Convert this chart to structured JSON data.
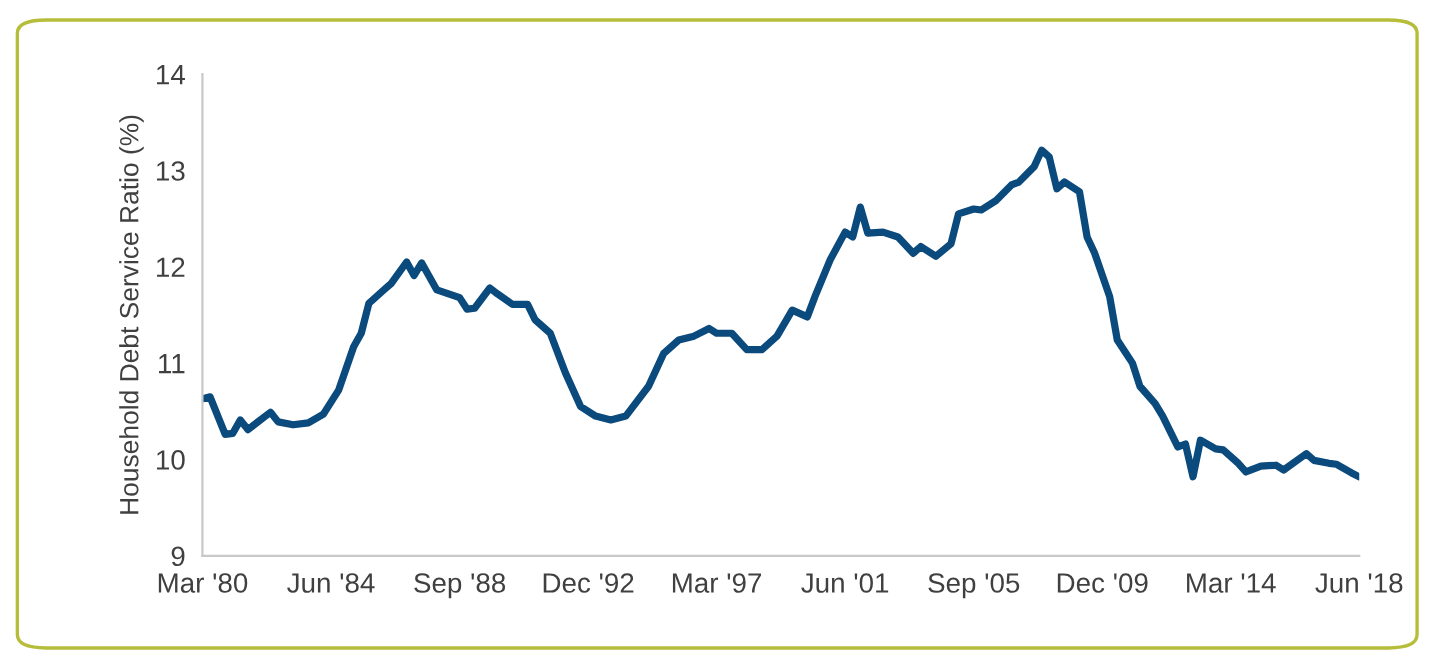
{
  "chart_data": {
    "type": "line",
    "ylabel": "Household Debt Service Ratio (%)",
    "x": [
      "1980-03",
      "1980-06",
      "1980-12",
      "1981-03",
      "1981-06",
      "1981-09",
      "1982-06",
      "1982-09",
      "1983-03",
      "1983-09",
      "1984-03",
      "1984-09",
      "1985-03",
      "1985-06",
      "1985-09",
      "1986-03",
      "1986-06",
      "1986-12",
      "1987-03",
      "1987-06",
      "1987-12",
      "1988-09",
      "1988-12",
      "1989-03",
      "1989-09",
      "1989-12",
      "1990-06",
      "1990-12",
      "1991-03",
      "1991-09",
      "1992-03",
      "1992-09",
      "1993-03",
      "1993-09",
      "1994-03",
      "1994-12",
      "1995-06",
      "1995-12",
      "1996-06",
      "1996-12",
      "1997-03",
      "1997-09",
      "1998-03",
      "1998-09",
      "1999-03",
      "1999-09",
      "2000-03",
      "2000-06",
      "2000-12",
      "2001-06",
      "2001-09",
      "2001-12",
      "2002-03",
      "2002-09",
      "2003-03",
      "2003-09",
      "2003-12",
      "2004-06",
      "2004-12",
      "2005-03",
      "2005-09",
      "2005-12",
      "2006-06",
      "2006-12",
      "2007-03",
      "2007-09",
      "2007-12",
      "2008-03",
      "2008-06",
      "2008-09",
      "2009-03",
      "2009-06",
      "2009-09",
      "2010-03",
      "2010-06",
      "2010-12",
      "2011-03",
      "2011-09",
      "2011-12",
      "2012-06",
      "2012-09",
      "2012-12",
      "2013-03",
      "2013-09",
      "2013-12",
      "2014-06",
      "2014-09",
      "2015-03",
      "2015-09",
      "2015-12",
      "2016-09",
      "2016-12",
      "2017-06",
      "2017-09",
      "2018-03",
      "2018-06"
    ],
    "series": [
      {
        "color": "#0b4a7d",
        "values": [
          10.63,
          10.65,
          10.26,
          10.27,
          10.41,
          10.31,
          10.49,
          10.39,
          10.36,
          10.38,
          10.47,
          10.72,
          11.17,
          11.31,
          11.62,
          11.76,
          11.83,
          12.05,
          11.91,
          12.04,
          11.76,
          11.68,
          11.56,
          11.57,
          11.78,
          11.72,
          11.61,
          11.61,
          11.45,
          11.31,
          10.9,
          10.55,
          10.45,
          10.41,
          10.45,
          10.76,
          11.1,
          11.24,
          11.28,
          11.36,
          11.31,
          11.31,
          11.14,
          11.14,
          11.28,
          11.55,
          11.48,
          11.69,
          12.07,
          12.36,
          12.31,
          12.62,
          12.35,
          12.36,
          12.31,
          12.14,
          12.21,
          12.11,
          12.24,
          12.55,
          12.6,
          12.59,
          12.69,
          12.85,
          12.88,
          13.04,
          13.21,
          13.14,
          12.81,
          12.88,
          12.78,
          12.31,
          12.14,
          11.69,
          11.24,
          11.0,
          10.76,
          10.58,
          10.45,
          10.13,
          10.16,
          9.82,
          10.2,
          10.11,
          10.1,
          9.96,
          9.87,
          9.93,
          9.94,
          9.89,
          10.06,
          9.99,
          9.96,
          9.95,
          9.86,
          9.82
        ]
      }
    ],
    "xlim": [
      "1980-03",
      "2018-06"
    ],
    "xticks": [
      {
        "value": "1980-03",
        "label": "Mar '80"
      },
      {
        "value": "1984-06",
        "label": "Jun '84"
      },
      {
        "value": "1988-09",
        "label": "Sep '88"
      },
      {
        "value": "1992-12",
        "label": "Dec '92"
      },
      {
        "value": "1997-03",
        "label": "Mar '97"
      },
      {
        "value": "2001-06",
        "label": "Jun '01"
      },
      {
        "value": "2005-09",
        "label": "Sep '05"
      },
      {
        "value": "2009-12",
        "label": "Dec '09"
      },
      {
        "value": "2014-03",
        "label": "Mar '14"
      },
      {
        "value": "2018-06",
        "label": "Jun '18"
      }
    ],
    "ylim": [
      9,
      14
    ],
    "yticks": [
      9,
      10,
      11,
      12,
      13,
      14
    ],
    "grid": false,
    "marker": "none",
    "line_style": "solid"
  }
}
